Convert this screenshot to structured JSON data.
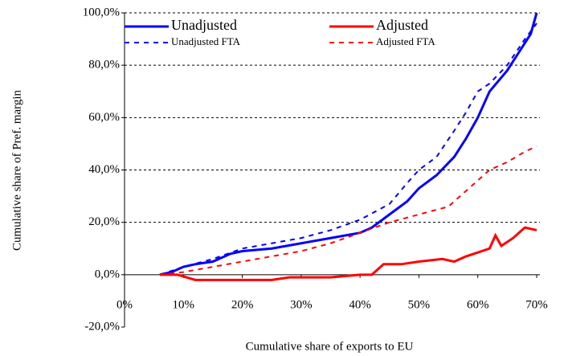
{
  "chart_data": {
    "type": "line",
    "xlabel": "Cumulative share of exports to EU",
    "ylabel": "Cumulative share of Pref. margin",
    "xlim": [
      0,
      70
    ],
    "xticks": [
      {
        "value": 0,
        "label": "0%"
      },
      {
        "value": 10,
        "label": "10%"
      },
      {
        "value": 20,
        "label": "20%"
      },
      {
        "value": 30,
        "label": "30%"
      },
      {
        "value": 40,
        "label": "40%"
      },
      {
        "value": 50,
        "label": "50%"
      },
      {
        "value": 60,
        "label": "60%"
      },
      {
        "value": 70,
        "label": "70%"
      }
    ],
    "ylim": [
      -20,
      100
    ],
    "yticks": [
      {
        "value": -20,
        "label": "-20,0%"
      },
      {
        "value": 0,
        "label": "0,0%"
      },
      {
        "value": 20,
        "label": "20,0%"
      },
      {
        "value": 40,
        "label": "40,0%"
      },
      {
        "value": 60,
        "label": "60,0%"
      },
      {
        "value": 80,
        "label": "80,0%"
      },
      {
        "value": 100,
        "label": "100,0%"
      }
    ],
    "grid": true,
    "legend": "top",
    "series": [
      {
        "name": "Unadjusted",
        "color": "#0000ff",
        "dash": false,
        "x": [
          6,
          8,
          10,
          12,
          15,
          18,
          20,
          25,
          30,
          35,
          40,
          42,
          45,
          48,
          50,
          53,
          56,
          58,
          60,
          62,
          65,
          67,
          69,
          70
        ],
        "values": [
          0,
          1,
          3,
          4,
          5,
          8,
          9,
          10,
          12,
          14,
          16,
          18,
          23,
          28,
          33,
          38,
          45,
          52,
          60,
          70,
          78,
          85,
          92,
          100
        ]
      },
      {
        "name": "Adjusted",
        "color": "#ff0000",
        "dash": false,
        "x": [
          6,
          9,
          12,
          20,
          25,
          28,
          35,
          40,
          42,
          44,
          47,
          50,
          54,
          56,
          58,
          62,
          63,
          64,
          66,
          68,
          70
        ],
        "values": [
          0,
          0,
          -2,
          -2,
          -2,
          -1,
          -1,
          0,
          0,
          4,
          4,
          5,
          6,
          5,
          7,
          10,
          15,
          11,
          14,
          18,
          17
        ]
      },
      {
        "name": "Unadjusted FTA",
        "color": "#0000ff",
        "dash": true,
        "x": [
          6,
          10,
          15,
          20,
          25,
          30,
          35,
          40,
          45,
          48,
          50,
          53,
          56,
          58,
          60,
          62,
          65,
          68,
          70
        ],
        "values": [
          0,
          3,
          6,
          10,
          12,
          14,
          17,
          21,
          27,
          35,
          40,
          45,
          55,
          62,
          70,
          73,
          80,
          90,
          96
        ]
      },
      {
        "name": "Adjusted FTA",
        "color": "#ff0000",
        "dash": true,
        "x": [
          6,
          10,
          15,
          20,
          25,
          30,
          35,
          40,
          45,
          50,
          55,
          58,
          62,
          65,
          68,
          70
        ],
        "values": [
          0,
          1,
          3,
          5,
          7,
          9,
          12,
          16,
          20,
          23,
          26,
          32,
          40,
          43,
          47,
          49
        ]
      }
    ]
  }
}
